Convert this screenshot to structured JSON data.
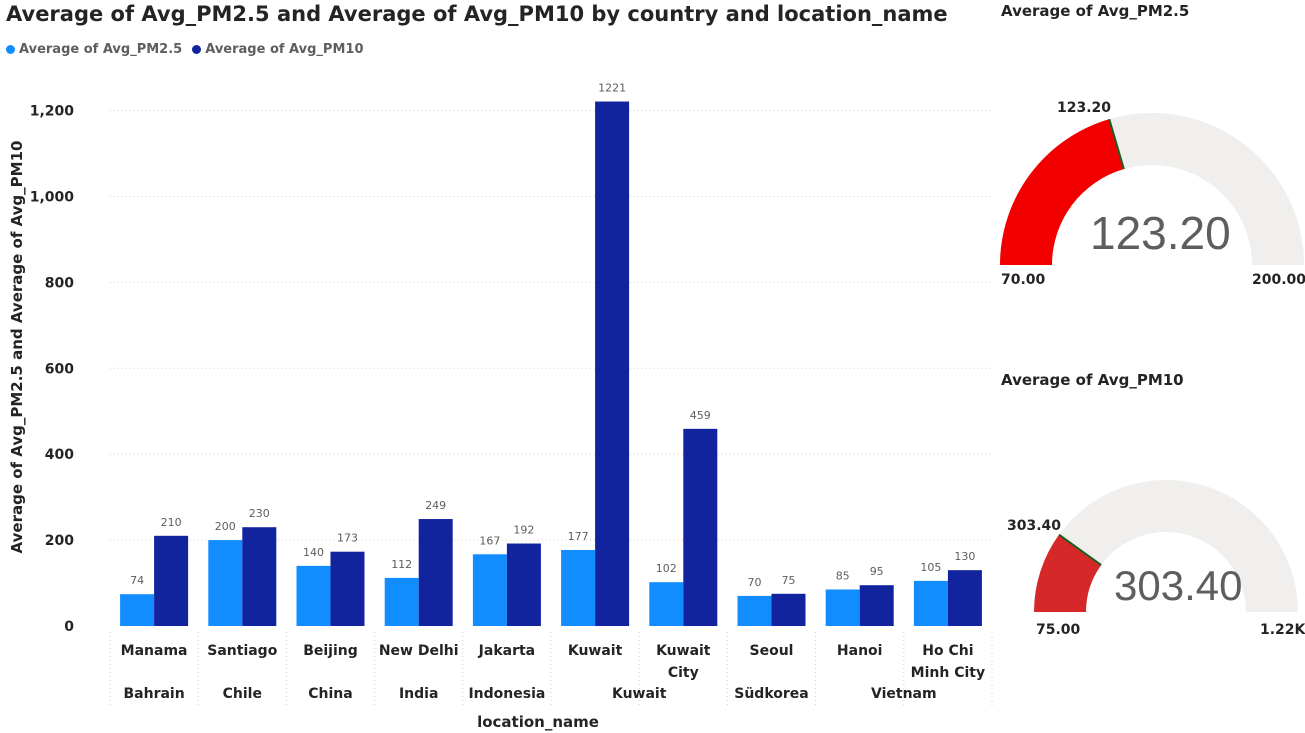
{
  "chart_data": {
    "type": "bar",
    "title": "Average of Avg_PM2.5 and Average of Avg_PM10 by country and location_name",
    "xlabel": "location_name",
    "ylabel": "Average of Avg_PM2.5 and Average of Avg_PM10",
    "ylim": [
      0,
      1300
    ],
    "yticks": [
      0,
      200,
      400,
      600,
      800,
      1000,
      1200
    ],
    "ytick_labels": [
      "0",
      "200",
      "400",
      "600",
      "800",
      "1,000",
      "1,200"
    ],
    "grid": true,
    "legend_position": "top-left",
    "categories": [
      "Manama",
      "Santiago",
      "Beijing",
      "New Delhi",
      "Jakarta",
      "Kuwait",
      "Kuwait City",
      "Seoul",
      "Hanoi",
      "Ho Chi Minh City"
    ],
    "category_lines": [
      [
        "Manama"
      ],
      [
        "Santiago"
      ],
      [
        "Beijing"
      ],
      [
        "New Delhi"
      ],
      [
        "Jakarta"
      ],
      [
        "Kuwait"
      ],
      [
        "Kuwait",
        "City"
      ],
      [
        "Seoul"
      ],
      [
        "Hanoi"
      ],
      [
        "Ho Chi",
        "Minh City"
      ]
    ],
    "groups": [
      {
        "name": "Bahrain",
        "count": 1
      },
      {
        "name": "Chile",
        "count": 1
      },
      {
        "name": "China",
        "count": 1
      },
      {
        "name": "India",
        "count": 1
      },
      {
        "name": "Indonesia",
        "count": 1
      },
      {
        "name": "Kuwait",
        "count": 2
      },
      {
        "name": "Südkorea",
        "count": 1
      },
      {
        "name": "Vietnam",
        "count": 2
      }
    ],
    "series": [
      {
        "name": "Average of Avg_PM2.5",
        "color": "#118DFF",
        "values": [
          74,
          200,
          140,
          112,
          167,
          177,
          102,
          70,
          85,
          105
        ]
      },
      {
        "name": "Average of Avg_PM10",
        "color": "#12239E",
        "values": [
          210,
          230,
          173,
          249,
          192,
          1221,
          459,
          75,
          95,
          130
        ]
      }
    ]
  },
  "gauges": [
    {
      "title": "Average of Avg_PM2.5",
      "value": 123.2,
      "value_label": "123.20",
      "min": 70,
      "max": 200,
      "min_label": "70.00",
      "max_label": "200.00",
      "fill_color": "#F20000",
      "track_color": "#F0EFEE"
    },
    {
      "title": "Average of Avg_PM10",
      "value": 303.4,
      "value_label": "303.40",
      "min": 75,
      "max": 1221,
      "min_label": "75.00",
      "max_label": "1.22K",
      "fill_color": "#D62828",
      "track_color": "#F0EFEE"
    }
  ]
}
